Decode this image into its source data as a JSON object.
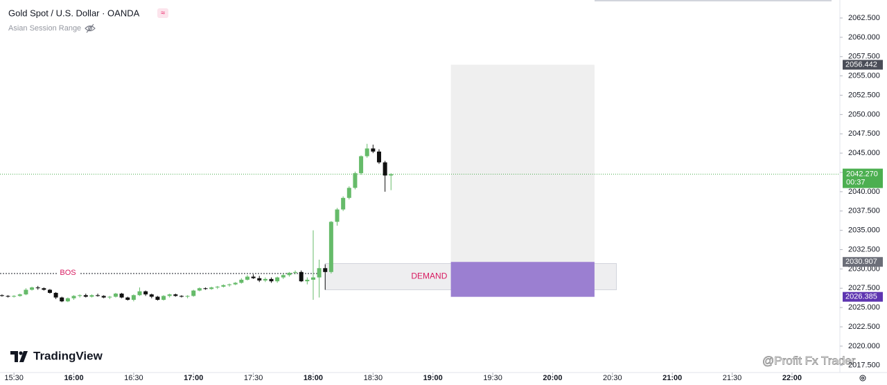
{
  "chart_data": {
    "type": "candlestick",
    "title": "Gold Spot / U.S. Dollar · OANDA",
    "indicator": "Asian Session Range",
    "brand": "TradingView",
    "watermark": "@Profit Fx Trader",
    "up_color": "#66bb6a",
    "down_color": "#111111",
    "grid": false,
    "xlim": [
      "15:23",
      "22:24"
    ],
    "xticks": [
      "15:30",
      "16:00",
      "16:30",
      "17:00",
      "17:30",
      "18:00",
      "18:30",
      "19:00",
      "19:30",
      "20:00",
      "20:30",
      "21:00",
      "21:30",
      "22:00"
    ],
    "ylim": [
      2016.58,
      2064.83
    ],
    "yticks": [
      {
        "value": 2017.5,
        "label": "2017.500"
      },
      {
        "value": 2020,
        "label": "2020.000"
      },
      {
        "value": 2022.5,
        "label": "2022.500"
      },
      {
        "value": 2025,
        "label": "2025.000"
      },
      {
        "value": 2027.5,
        "label": "2027.500"
      },
      {
        "value": 2030,
        "label": "2030.000"
      },
      {
        "value": 2032.5,
        "label": "2032.500"
      },
      {
        "value": 2035,
        "label": "2035.000"
      },
      {
        "value": 2037.5,
        "label": "2037.500"
      },
      {
        "value": 2040,
        "label": "2040.000"
      },
      {
        "value": 2042.5,
        "label": "2042.500"
      },
      {
        "value": 2045,
        "label": "2045.000"
      },
      {
        "value": 2047.5,
        "label": "2047.500"
      },
      {
        "value": 2050,
        "label": "2050.000"
      },
      {
        "value": 2052.5,
        "label": "2052.500"
      },
      {
        "value": 2055,
        "label": "2055.000"
      },
      {
        "value": 2057.5,
        "label": "2057.500"
      },
      {
        "value": 2060,
        "label": "2060.000"
      },
      {
        "value": 2062.5,
        "label": "2062.500"
      }
    ],
    "candles": {
      "x": [
        "15:24",
        "15:27",
        "15:30",
        "15:33",
        "15:36",
        "15:39",
        "15:42",
        "15:45",
        "15:48",
        "15:51",
        "15:54",
        "15:57",
        "16:00",
        "16:03",
        "16:06",
        "16:09",
        "16:12",
        "16:15",
        "16:18",
        "16:21",
        "16:24",
        "16:27",
        "16:30",
        "16:33",
        "16:36",
        "16:39",
        "16:42",
        "16:45",
        "16:48",
        "16:51",
        "16:54",
        "16:57",
        "17:00",
        "17:03",
        "17:06",
        "17:09",
        "17:12",
        "17:15",
        "17:18",
        "17:21",
        "17:24",
        "17:27",
        "17:30",
        "17:33",
        "17:36",
        "17:39",
        "17:42",
        "17:45",
        "17:48",
        "17:51",
        "17:54",
        "17:57",
        "18:00",
        "18:03",
        "18:06",
        "18:09",
        "18:12",
        "18:15",
        "18:18",
        "18:21",
        "18:24",
        "18:27",
        "18:30",
        "18:33",
        "18:36",
        "18:39"
      ],
      "ohlc": [
        [
          2026.6,
          2026.7,
          2026.4,
          2026.5
        ],
        [
          2026.5,
          2026.6,
          2026.3,
          2026.4
        ],
        [
          2026.4,
          2026.6,
          2026.3,
          2026.5
        ],
        [
          2026.5,
          2026.8,
          2026.4,
          2026.7
        ],
        [
          2026.7,
          2027.5,
          2026.6,
          2027.3
        ],
        [
          2027.3,
          2027.7,
          2027.2,
          2027.6
        ],
        [
          2027.6,
          2027.8,
          2027.3,
          2027.5
        ],
        [
          2027.5,
          2027.6,
          2027.2,
          2027.3
        ],
        [
          2027.3,
          2027.4,
          2026.8,
          2026.9
        ],
        [
          2026.9,
          2027.0,
          2026.1,
          2026.3
        ],
        [
          2026.3,
          2026.4,
          2025.7,
          2025.8
        ],
        [
          2025.8,
          2026.3,
          2025.7,
          2026.2
        ],
        [
          2026.2,
          2026.6,
          2026.0,
          2026.5
        ],
        [
          2026.5,
          2026.7,
          2026.3,
          2026.6
        ],
        [
          2026.6,
          2026.8,
          2026.3,
          2026.4
        ],
        [
          2026.4,
          2026.7,
          2026.3,
          2026.6
        ],
        [
          2026.6,
          2026.8,
          2026.4,
          2026.5
        ],
        [
          2026.5,
          2026.6,
          2026.2,
          2026.3
        ],
        [
          2026.3,
          2026.5,
          2026.1,
          2026.4
        ],
        [
          2026.4,
          2026.9,
          2026.3,
          2026.8
        ],
        [
          2026.8,
          2026.9,
          2026.2,
          2026.3
        ],
        [
          2026.3,
          2026.4,
          2025.9,
          2026.0
        ],
        [
          2026.0,
          2026.7,
          2025.8,
          2026.6
        ],
        [
          2026.6,
          2027.6,
          2026.5,
          2027.1
        ],
        [
          2027.1,
          2027.2,
          2026.5,
          2026.7
        ],
        [
          2026.7,
          2026.8,
          2026.2,
          2026.4
        ],
        [
          2026.4,
          2026.5,
          2025.9,
          2026.0
        ],
        [
          2026.0,
          2026.6,
          2025.9,
          2026.5
        ],
        [
          2026.5,
          2026.8,
          2026.3,
          2026.7
        ],
        [
          2026.7,
          2026.8,
          2026.4,
          2026.5
        ],
        [
          2026.5,
          2026.6,
          2026.3,
          2026.4
        ],
        [
          2026.4,
          2026.6,
          2026.2,
          2026.5
        ],
        [
          2026.5,
          2027.3,
          2026.4,
          2027.2
        ],
        [
          2027.2,
          2027.6,
          2027.1,
          2027.5
        ],
        [
          2027.5,
          2027.6,
          2027.3,
          2027.4
        ],
        [
          2027.4,
          2027.7,
          2027.3,
          2027.6
        ],
        [
          2027.6,
          2027.8,
          2027.4,
          2027.7
        ],
        [
          2027.7,
          2028.0,
          2027.6,
          2027.9
        ],
        [
          2027.9,
          2028.1,
          2027.7,
          2028.0
        ],
        [
          2028.0,
          2028.3,
          2027.9,
          2028.2
        ],
        [
          2028.2,
          2028.8,
          2028.1,
          2028.6
        ],
        [
          2028.6,
          2029.2,
          2028.5,
          2029.0
        ],
        [
          2029.0,
          2029.3,
          2028.7,
          2028.8
        ],
        [
          2028.8,
          2029.1,
          2028.3,
          2028.5
        ],
        [
          2028.5,
          2028.9,
          2028.3,
          2028.7
        ],
        [
          2028.7,
          2028.9,
          2028.2,
          2028.4
        ],
        [
          2028.4,
          2029.0,
          2028.2,
          2028.9
        ],
        [
          2028.9,
          2029.4,
          2028.7,
          2029.2
        ],
        [
          2029.2,
          2029.6,
          2029.0,
          2029.5
        ],
        [
          2029.5,
          2029.8,
          2029.3,
          2029.6
        ],
        [
          2029.6,
          2029.8,
          2028.3,
          2028.4
        ],
        [
          2028.4,
          2028.9,
          2028.0,
          2028.6
        ],
        [
          2028.6,
          2035.0,
          2026.0,
          2028.9
        ],
        [
          2028.9,
          2031.2,
          2026.3,
          2030.1
        ],
        [
          2030.1,
          2030.6,
          2027.3,
          2029.6
        ],
        [
          2029.6,
          2036.2,
          2029.4,
          2036.1
        ],
        [
          2036.1,
          2037.9,
          2035.6,
          2037.7
        ],
        [
          2037.7,
          2039.4,
          2037.5,
          2039.2
        ],
        [
          2039.2,
          2040.7,
          2039.0,
          2040.5
        ],
        [
          2040.5,
          2042.6,
          2040.3,
          2042.4
        ],
        [
          2042.4,
          2044.7,
          2042.2,
          2044.6
        ],
        [
          2044.6,
          2046.2,
          2044.4,
          2045.6
        ],
        [
          2045.6,
          2046.1,
          2045.0,
          2045.2
        ],
        [
          2045.2,
          2045.5,
          2043.6,
          2043.8
        ],
        [
          2043.8,
          2044.0,
          2040.0,
          2042.1
        ],
        [
          2042.1,
          2042.4,
          2040.2,
          2042.27
        ]
      ]
    },
    "boxes": [
      {
        "x0": "19:09",
        "x1": "20:21",
        "y0": 2030.907,
        "y1": 2056.442,
        "color": "#efefef"
      },
      {
        "x0": "18:06",
        "x1": "20:32",
        "y0": 2027.3,
        "y1": 2030.7,
        "color": "#eeeef0",
        "label": "DEMAND",
        "label_color": "#d81b60"
      },
      {
        "x0": "19:09",
        "x1": "20:21",
        "y0": 2026.385,
        "y1": 2030.907,
        "color": "#9b7fd1"
      }
    ],
    "bos": {
      "label": "BOS",
      "value": 2029.4,
      "x0": "15:23",
      "x1": "18:03",
      "color": "#d81b60"
    },
    "price_line": {
      "value": 2042.27,
      "label": "2042.270",
      "countdown": "00:37",
      "color": "#4caf50"
    },
    "price_tags": [
      {
        "value": 2056.442,
        "color": "#4a4d57"
      },
      {
        "value": 2030.907,
        "color": "#6b6e78"
      },
      {
        "value": 2026.385,
        "color": "#5e35b1"
      }
    ]
  }
}
